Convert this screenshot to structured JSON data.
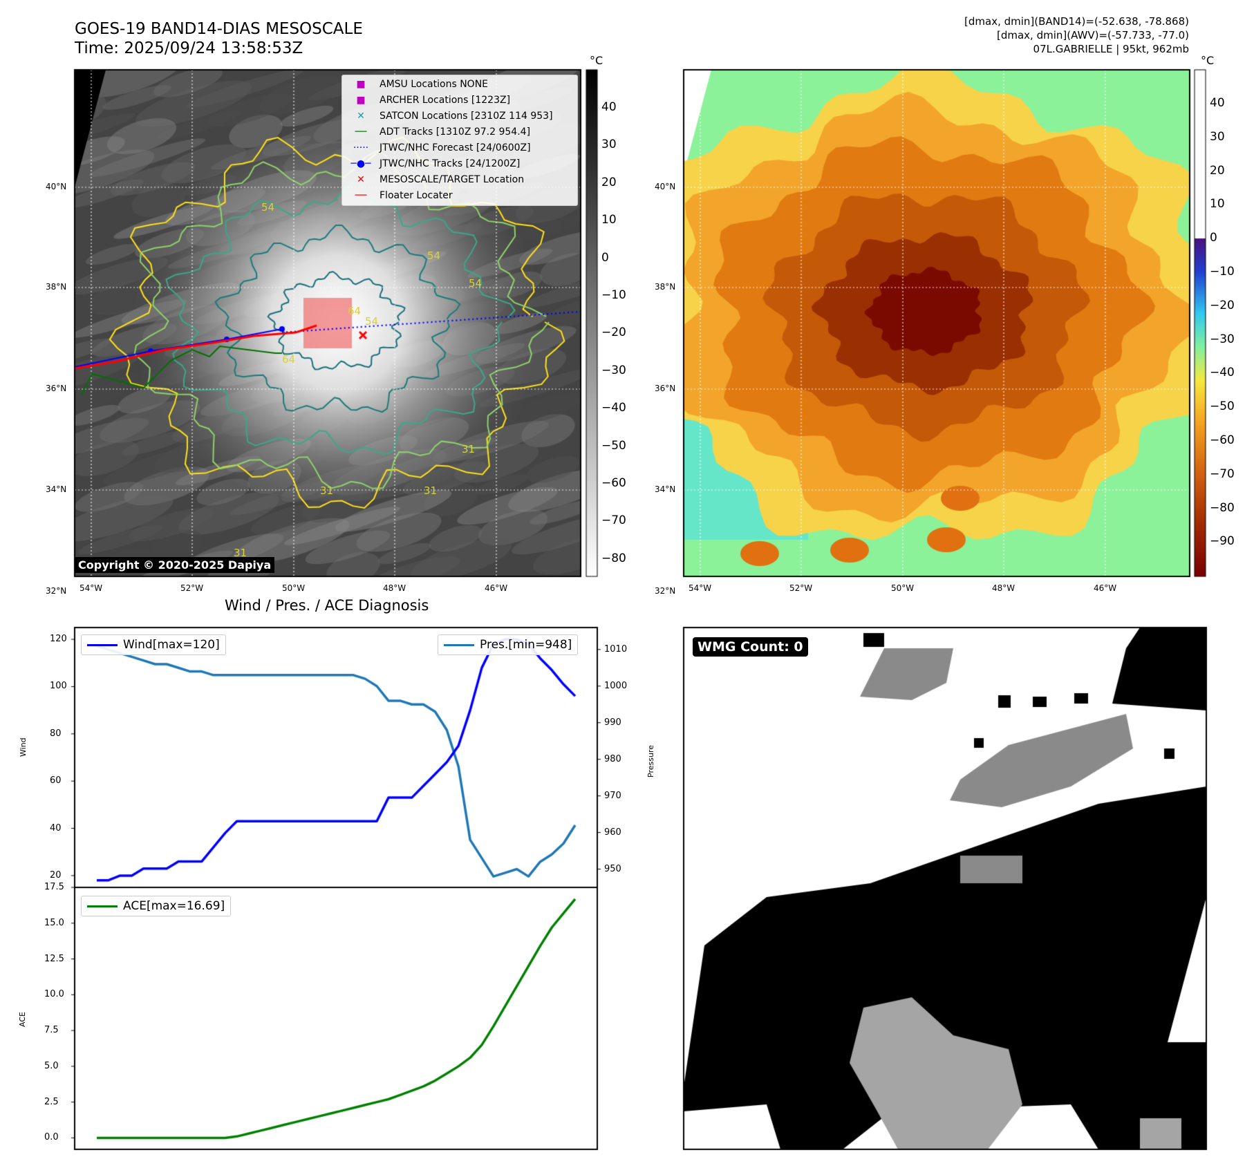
{
  "header": {
    "title_line1": "GOES-19 BAND14-DIAS MESOSCALE",
    "title_line2": "Time: 2025/09/24 13:58:53Z",
    "right_line1": "[dmax, dmin](BAND14)=(-52.638, -78.868)",
    "right_line2": "[dmax, dmin](AWV)=(-57.733, -77.0)",
    "right_line3": "07L.GABRIELLE | 95kt, 962mb"
  },
  "map": {
    "lat_labels": [
      "40°N",
      "38°N",
      "36°N",
      "34°N",
      "32°N"
    ],
    "lon_labels": [
      "54°W",
      "52°W",
      "50°W",
      "48°W",
      "46°W"
    ],
    "copyright": "Copyright © 2020-2025 Dapiya",
    "contour_labels": [
      "54",
      "54",
      "54",
      "54",
      "64",
      "64",
      "31",
      "31",
      "31",
      "31"
    ],
    "legend": [
      {
        "label": "AMSU Locations NONE",
        "marker": "square",
        "color": "#c000c0"
      },
      {
        "label": "ARCHER Locations [1223Z]",
        "marker": "square",
        "color": "#c000c0"
      },
      {
        "label": "SATCON Locations [2310Z 114 953]",
        "marker": "x",
        "color": "#10a0b0"
      },
      {
        "label": "ADT Tracks [1310Z 97.2 954.4]",
        "marker": "line",
        "color": "#007000"
      },
      {
        "label": "JTWC/NHC Forecast [24/0600Z]",
        "marker": "dotted",
        "color": "#0000ff"
      },
      {
        "label": "JTWC/NHC Tracks [24/1200Z]",
        "marker": "line-dot",
        "color": "#0000ff"
      },
      {
        "label": "MESOSCALE/TARGET Location",
        "marker": "x",
        "color": "#ff0000"
      },
      {
        "label": "Floater Locater",
        "marker": "line",
        "color": "#ff0000"
      }
    ]
  },
  "colorbar_gray": {
    "unit": "°C",
    "ticks": [
      "40",
      "30",
      "20",
      "10",
      "0",
      "−10",
      "−20",
      "−30",
      "−40",
      "−50",
      "−60",
      "−70",
      "−80"
    ]
  },
  "colorbar_color": {
    "unit": "°C",
    "ticks": [
      "40",
      "30",
      "20",
      "10",
      "0",
      "−10",
      "−20",
      "−30",
      "−40",
      "−50",
      "−60",
      "−70",
      "−80",
      "−90"
    ]
  },
  "wmg": {
    "label": "WMG Count: 0"
  },
  "chart_data": [
    {
      "type": "line",
      "title": "Wind / Pres. / ACE Diagnosis",
      "ylabel": "Wind",
      "ylabel_right": "Pressure",
      "ylim": [
        15,
        125
      ],
      "ylim_right": [
        945,
        1016
      ],
      "yticks": [
        "120",
        "100",
        "80",
        "60",
        "40",
        "20"
      ],
      "yticks_right": [
        "1010",
        "1000",
        "990",
        "980",
        "970",
        "960",
        "950"
      ],
      "series": [
        {
          "name": "Wind[max=120]",
          "color": "#0000ff",
          "axis": "left",
          "values": [
            18,
            18,
            20,
            20,
            23,
            23,
            23,
            26,
            26,
            26,
            32,
            38,
            43,
            43,
            43,
            43,
            43,
            43,
            43,
            43,
            43,
            43,
            43,
            43,
            43,
            53,
            53,
            53,
            58,
            63,
            68,
            75,
            90,
            108,
            118,
            120,
            120,
            118,
            112,
            107,
            101,
            96
          ]
        },
        {
          "name": "Pres.[min=948]",
          "color": "#1f77b4",
          "axis": "right",
          "values": [
            1011,
            1010,
            1009,
            1008,
            1007,
            1006,
            1006,
            1005,
            1004,
            1004,
            1003,
            1003,
            1003,
            1003,
            1003,
            1003,
            1003,
            1003,
            1003,
            1003,
            1003,
            1003,
            1003,
            1002,
            1000,
            996,
            996,
            995,
            995,
            993,
            988,
            978,
            958,
            953,
            948,
            949,
            950,
            948,
            952,
            954,
            957,
            962
          ]
        }
      ]
    },
    {
      "type": "line",
      "ylabel": "ACE",
      "ylim": [
        -0.8,
        17.5
      ],
      "yticks": [
        "17.5",
        "15.0",
        "12.5",
        "10.0",
        "7.5",
        "5.0",
        "2.5",
        "0.0"
      ],
      "series": [
        {
          "name": "ACE[max=16.69]",
          "color": "#008000",
          "values": [
            0,
            0,
            0,
            0,
            0,
            0,
            0,
            0,
            0,
            0,
            0,
            0,
            0.1,
            0.3,
            0.5,
            0.7,
            0.9,
            1.1,
            1.3,
            1.5,
            1.7,
            1.9,
            2.1,
            2.3,
            2.5,
            2.7,
            3.0,
            3.3,
            3.6,
            4.0,
            4.5,
            5.0,
            5.6,
            6.5,
            7.8,
            9.2,
            10.6,
            12.0,
            13.4,
            14.7,
            15.7,
            16.69
          ]
        }
      ]
    }
  ]
}
